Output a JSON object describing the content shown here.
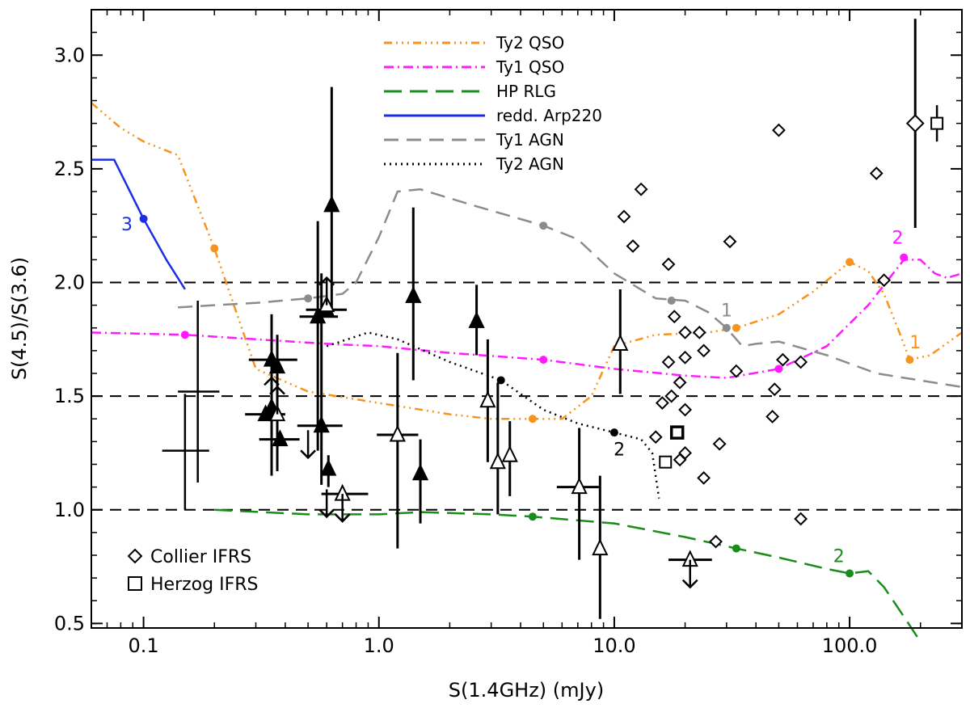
{
  "chart_data": {
    "type": "scatter",
    "xscale": "log",
    "xlabel": "S(1.4GHz) (mJy)",
    "ylabel": "S(4.5)/S(3.6)",
    "xlim": [
      0.06,
      300
    ],
    "ylim": [
      0.48,
      3.2
    ],
    "xticks": [
      {
        "v": 0.1,
        "label": "0.1"
      },
      {
        "v": 1,
        "label": "1.0"
      },
      {
        "v": 10,
        "label": "10.0"
      },
      {
        "v": 100,
        "label": "100.0"
      }
    ],
    "yticks": [
      {
        "v": 0.5,
        "label": "0.5"
      },
      {
        "v": 1.0,
        "label": "1.0"
      },
      {
        "v": 1.5,
        "label": "1.5"
      },
      {
        "v": 2.0,
        "label": "2.0"
      },
      {
        "v": 2.5,
        "label": "2.5"
      },
      {
        "v": 3.0,
        "label": "3.0"
      }
    ],
    "hlines": [
      1.0,
      1.5,
      2.0
    ],
    "colors": {
      "ty2qso": "#f7931e",
      "ty1qso": "#ff1aff",
      "hprlg": "#1a8c1a",
      "arp220": "#1a2ee6",
      "ty1agn": "#8c8c8c",
      "ty2agn": "#000000"
    },
    "legend": [
      {
        "label": "Ty2 QSO",
        "series": "ty2qso"
      },
      {
        "label": "Ty1 QSO",
        "series": "ty1qso"
      },
      {
        "label": "HP RLG",
        "series": "hprlg"
      },
      {
        "label": "redd. Arp220",
        "series": "arp220"
      },
      {
        "label": "Ty1 AGN",
        "series": "ty1agn"
      },
      {
        "label": "Ty2 AGN",
        "series": "ty2agn"
      }
    ],
    "marker_legend": [
      {
        "label": "Collier IFRS",
        "marker": "diamond"
      },
      {
        "label": "Herzog IFRS",
        "marker": "square"
      }
    ],
    "tracks": [
      {
        "series": "ty2qso",
        "name": "Ty2 QSO",
        "points": [
          [
            0.06,
            2.79
          ],
          [
            0.08,
            2.68
          ],
          [
            0.1,
            2.62
          ],
          [
            0.14,
            2.56
          ],
          [
            0.2,
            2.15
          ],
          [
            0.3,
            1.62
          ],
          [
            0.5,
            1.52
          ],
          [
            1,
            1.47
          ],
          [
            2,
            1.42
          ],
          [
            3,
            1.4
          ],
          [
            4.5,
            1.4
          ],
          [
            6,
            1.4
          ],
          [
            8,
            1.5
          ],
          [
            10,
            1.72
          ],
          [
            15,
            1.77
          ],
          [
            25,
            1.78
          ],
          [
            33,
            1.8
          ],
          [
            50,
            1.86
          ],
          [
            70,
            1.96
          ],
          [
            100,
            2.09
          ],
          [
            120,
            2.05
          ],
          [
            140,
            1.95
          ],
          [
            160,
            1.8
          ],
          [
            180,
            1.66
          ],
          [
            220,
            1.68
          ],
          [
            300,
            1.78
          ]
        ],
        "dots": [
          [
            0.2,
            2.15
          ],
          [
            4.5,
            1.4
          ],
          [
            33,
            1.8
          ],
          [
            100,
            2.09
          ],
          [
            180,
            1.66
          ]
        ]
      },
      {
        "series": "ty1qso",
        "name": "Ty1 QSO",
        "points": [
          [
            0.06,
            1.78
          ],
          [
            0.15,
            1.77
          ],
          [
            0.3,
            1.75
          ],
          [
            0.6,
            1.73
          ],
          [
            1,
            1.72
          ],
          [
            2,
            1.69
          ],
          [
            5,
            1.66
          ],
          [
            10,
            1.62
          ],
          [
            20,
            1.59
          ],
          [
            30,
            1.58
          ],
          [
            50,
            1.62
          ],
          [
            80,
            1.72
          ],
          [
            120,
            1.9
          ],
          [
            170,
            2.1
          ],
          [
            200,
            2.1
          ],
          [
            230,
            2.04
          ],
          [
            260,
            2.02
          ],
          [
            300,
            2.04
          ]
        ],
        "dots": [
          [
            0.15,
            1.77
          ],
          [
            5,
            1.66
          ],
          [
            50,
            1.62
          ],
          [
            170,
            2.11
          ]
        ]
      },
      {
        "series": "hprlg",
        "name": "HP RLG",
        "points": [
          [
            0.2,
            1.0
          ],
          [
            0.5,
            0.98
          ],
          [
            1,
            0.98
          ],
          [
            1.5,
            0.99
          ],
          [
            3,
            0.98
          ],
          [
            4.5,
            0.97
          ],
          [
            10,
            0.94
          ],
          [
            20,
            0.88
          ],
          [
            33,
            0.83
          ],
          [
            50,
            0.79
          ],
          [
            80,
            0.74
          ],
          [
            100,
            0.72
          ],
          [
            120,
            0.73
          ],
          [
            140,
            0.66
          ],
          [
            170,
            0.53
          ],
          [
            200,
            0.42
          ]
        ],
        "dots": [
          [
            4.5,
            0.97
          ],
          [
            33,
            0.83
          ],
          [
            100,
            0.72
          ]
        ]
      },
      {
        "series": "arp220",
        "name": "redd. Arp220",
        "points": [
          [
            0.06,
            2.54
          ],
          [
            0.075,
            2.54
          ],
          [
            0.1,
            2.28
          ],
          [
            0.125,
            2.1
          ],
          [
            0.15,
            1.97
          ]
        ],
        "dots": [
          [
            0.1,
            2.28
          ]
        ]
      },
      {
        "series": "ty1agn",
        "name": "Ty1 AGN",
        "points": [
          [
            0.14,
            1.89
          ],
          [
            0.2,
            1.9
          ],
          [
            0.3,
            1.91
          ],
          [
            0.5,
            1.93
          ],
          [
            0.7,
            1.95
          ],
          [
            0.8,
            2.0
          ],
          [
            1.0,
            2.2
          ],
          [
            1.2,
            2.4
          ],
          [
            1.5,
            2.41
          ],
          [
            2.5,
            2.34
          ],
          [
            5,
            2.25
          ],
          [
            7,
            2.19
          ],
          [
            10,
            2.04
          ],
          [
            15,
            1.93
          ],
          [
            20,
            1.92
          ],
          [
            25,
            1.87
          ],
          [
            30,
            1.8
          ],
          [
            35,
            1.72
          ],
          [
            40,
            1.73
          ],
          [
            50,
            1.74
          ],
          [
            80,
            1.68
          ],
          [
            130,
            1.6
          ],
          [
            300,
            1.54
          ]
        ],
        "dots": [
          [
            0.5,
            1.93
          ],
          [
            5,
            2.25
          ],
          [
            17.5,
            1.92
          ],
          [
            30,
            1.8
          ]
        ]
      },
      {
        "series": "ty2agn",
        "name": "Ty2 AGN",
        "points": [
          [
            0.6,
            1.72
          ],
          [
            0.9,
            1.78
          ],
          [
            1.2,
            1.75
          ],
          [
            2,
            1.65
          ],
          [
            3.3,
            1.57
          ],
          [
            5,
            1.44
          ],
          [
            7,
            1.38
          ],
          [
            10,
            1.34
          ],
          [
            13,
            1.31
          ],
          [
            14.5,
            1.25
          ],
          [
            15.5,
            1.05
          ]
        ],
        "dots": [
          [
            3.3,
            1.57
          ],
          [
            10,
            1.34
          ]
        ]
      }
    ],
    "track_labels": [
      {
        "text": "3",
        "series": "arp220",
        "x": 0.085,
        "y": 2.23
      },
      {
        "text": "2",
        "series": "ty2agn",
        "x": 10.5,
        "y": 1.24
      },
      {
        "text": "1",
        "series": "ty1agn",
        "x": 30,
        "y": 1.85
      },
      {
        "text": "2",
        "series": "ty1qso",
        "x": 160,
        "y": 2.17
      },
      {
        "text": "1",
        "series": "ty2qso",
        "x": 190,
        "y": 1.71
      },
      {
        "text": "2",
        "series": "hprlg",
        "x": 90,
        "y": 0.77
      }
    ],
    "collier_ifrs": [
      [
        11,
        2.29
      ],
      [
        13,
        2.41
      ],
      [
        12,
        2.16
      ],
      [
        17,
        2.08
      ],
      [
        31,
        2.18
      ],
      [
        50,
        2.67
      ],
      [
        130,
        2.48
      ],
      [
        140,
        2.01
      ],
      [
        18,
        1.85
      ],
      [
        20,
        1.78
      ],
      [
        23,
        1.78
      ],
      [
        17,
        1.65
      ],
      [
        19,
        1.56
      ],
      [
        20,
        1.67
      ],
      [
        24,
        1.7
      ],
      [
        16,
        1.47
      ],
      [
        17.5,
        1.5
      ],
      [
        15,
        1.32
      ],
      [
        19,
        1.22
      ],
      [
        20,
        1.25
      ],
      [
        20,
        1.44
      ],
      [
        24,
        1.14
      ],
      [
        28,
        1.29
      ],
      [
        33,
        1.61
      ],
      [
        47,
        1.41
      ],
      [
        48,
        1.53
      ],
      [
        52,
        1.66
      ],
      [
        62,
        1.65
      ],
      [
        62,
        0.96
      ],
      [
        27,
        0.86
      ]
    ],
    "collier_big": [
      {
        "x": 190,
        "y": 2.7,
        "ylo": 2.24,
        "yhi": 3.16
      }
    ],
    "herzog_ifrs": [
      {
        "x": 16.5,
        "y": 1.21,
        "bold": false
      },
      {
        "x": 18.5,
        "y": 1.34,
        "bold": true
      },
      {
        "x": 235,
        "y": 2.7,
        "bold": false
      }
    ],
    "filled_triangles": [
      {
        "x": 0.35,
        "y": 1.66,
        "ylo": 1.15,
        "yhi": 1.86,
        "xlo": 0.28,
        "xhi": 0.45
      },
      {
        "x": 0.37,
        "y": 1.63,
        "ylo": 1.17,
        "yhi": 1.77
      },
      {
        "x": 0.35,
        "y": 1.45,
        "ylo": 1.24,
        "yhi": 1.58
      },
      {
        "x": 0.33,
        "y": 1.42,
        "xlo": 0.27,
        "xhi": 0.4
      },
      {
        "x": 0.38,
        "y": 1.31,
        "xlo": 0.31,
        "xhi": 0.46
      },
      {
        "x": 0.55,
        "y": 1.85,
        "ylo": 1.26,
        "yhi": 2.27,
        "xlo": 0.46,
        "xhi": 0.67
      },
      {
        "x": 0.57,
        "y": 1.37,
        "ylo": 1.11,
        "yhi": 2.04,
        "xlo": 0.45,
        "xhi": 0.7
      },
      {
        "x": 0.6,
        "y": 1.88,
        "xlo": 0.49,
        "xhi": 0.73
      },
      {
        "x": 0.63,
        "y": 2.34,
        "ylo": 1.88,
        "yhi": 2.86
      },
      {
        "x": 0.61,
        "y": 1.18,
        "ylo": 1.1,
        "yhi": 1.24
      },
      {
        "x": 1.4,
        "y": 1.94,
        "ylo": 1.57,
        "yhi": 2.33
      },
      {
        "x": 1.5,
        "y": 1.16,
        "ylo": 0.94,
        "yhi": 1.31
      },
      {
        "x": 2.6,
        "y": 1.83,
        "ylo": 1.68,
        "yhi": 1.99
      }
    ],
    "open_triangles": [
      {
        "x": 1.2,
        "y": 1.33,
        "ylo": 0.83,
        "yhi": 1.69,
        "xlo": 0.98,
        "xhi": 1.47
      },
      {
        "x": 2.9,
        "y": 1.48,
        "ylo": 1.21,
        "yhi": 1.75
      },
      {
        "x": 3.2,
        "y": 1.21,
        "ylo": 0.98,
        "yhi": 1.56
      },
      {
        "x": 3.6,
        "y": 1.24,
        "ylo": 1.06,
        "yhi": 1.39
      },
      {
        "x": 7.1,
        "y": 1.1,
        "ylo": 0.78,
        "yhi": 1.36,
        "xlo": 5.7,
        "xhi": 8.6
      },
      {
        "x": 8.7,
        "y": 0.83,
        "ylo": 0.52,
        "yhi": 1.15
      },
      {
        "x": 10.6,
        "y": 1.73,
        "ylo": 1.51,
        "yhi": 1.97
      }
    ],
    "crosses": [
      {
        "x": 0.17,
        "y": 1.52,
        "xlo": 0.14,
        "xhi": 0.21,
        "ylo": 1.12,
        "yhi": 1.92
      },
      {
        "x": 0.15,
        "y": 1.26,
        "xlo": 0.12,
        "xhi": 0.19,
        "ylo": 1.0,
        "yhi": 1.51
      }
    ],
    "upper_limits": [
      {
        "x": 0.5,
        "y": 1.35,
        "type": "none"
      },
      {
        "x": 0.6,
        "y": 1.09,
        "type": "none"
      },
      {
        "x": 0.7,
        "y": 1.07,
        "type": "open",
        "xlo": 0.57,
        "xhi": 0.9
      },
      {
        "x": 21,
        "y": 0.78,
        "type": "open",
        "xlo": 17,
        "xhi": 26
      }
    ],
    "lower_limits": [
      {
        "x": 0.37,
        "y": 1.42,
        "type": "open"
      },
      {
        "x": 0.6,
        "y": 1.9,
        "type": "open"
      },
      {
        "x": 0.35,
        "y": 1.46,
        "type": "none"
      }
    ]
  }
}
